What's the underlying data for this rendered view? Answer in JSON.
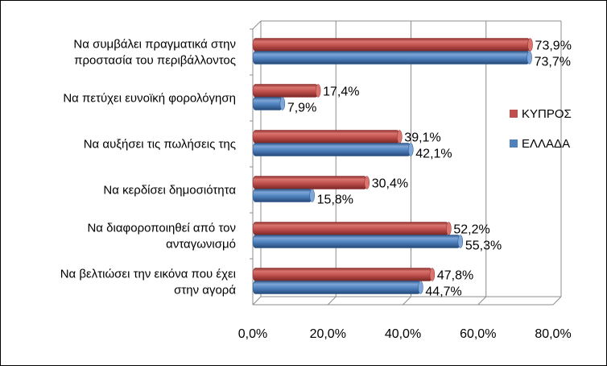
{
  "chart_data": {
    "type": "bar",
    "orientation": "horizontal",
    "style": "3d-cylinder",
    "categories": [
      [
        "Να συμβάλει πραγματικά στην",
        "προστασία του περιβάλλοντος"
      ],
      [
        "Να πετύχει ευνοϊκή φορολόγηση"
      ],
      [
        "Να αυξήσει τις πωλήσεις της"
      ],
      [
        "Να κερδίσει δημοσιότητα"
      ],
      [
        "Να διαφοροποιηθεί από τον",
        "ανταγωνισμό"
      ],
      [
        "Να βελτιώσει την εικόνα που έχει",
        "στην αγορά"
      ]
    ],
    "series": [
      {
        "name": "ΚΥΠΡΟΣ",
        "color": "#c0504d",
        "values": [
          73.9,
          17.4,
          39.1,
          30.4,
          52.2,
          47.8
        ],
        "labels": [
          "73,9%",
          "17,4%",
          "39,1%",
          "30,4%",
          "52,2%",
          "47,8%"
        ]
      },
      {
        "name": "ΕΛΛΑΔΑ",
        "color": "#4f81bd",
        "values": [
          73.7,
          7.9,
          42.1,
          15.8,
          55.3,
          44.7
        ],
        "labels": [
          "73,7%",
          "7,9%",
          "42,1%",
          "15,8%",
          "55,3%",
          "44,7%"
        ]
      }
    ],
    "xlim": [
      0,
      80
    ],
    "xticks": [
      0,
      20,
      40,
      60,
      80
    ],
    "xtick_labels": [
      "0,0%",
      "20,0%",
      "40,0%",
      "60,0%",
      "80,0%"
    ],
    "grid": "vertical",
    "legend_position": "right",
    "title": "",
    "xlabel": "",
    "ylabel": ""
  }
}
